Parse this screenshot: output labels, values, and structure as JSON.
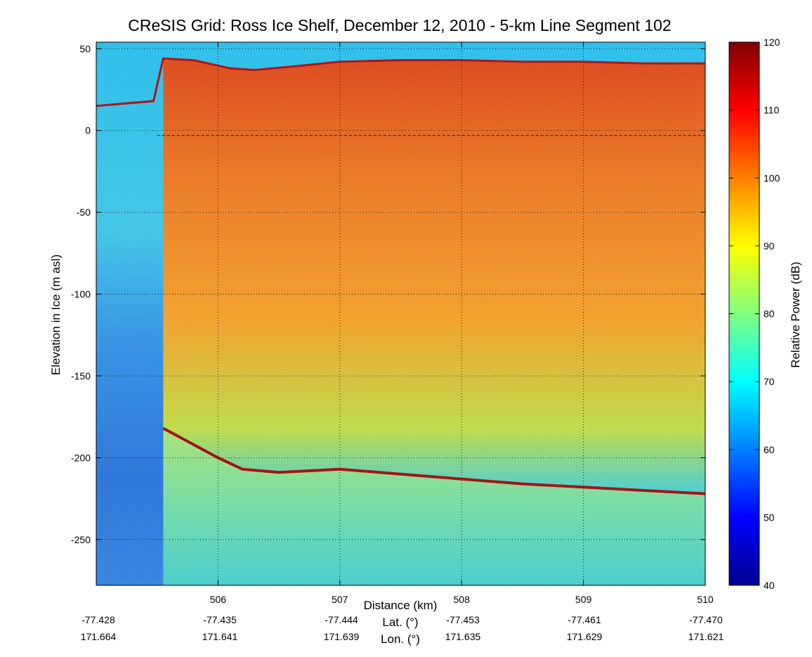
{
  "chart_data": {
    "type": "heatmap",
    "title": "CReSIS Grid: Ross Ice Shelf, December 12, 2010 - 5-km Line Segment 102",
    "xlabel": "Distance (km)",
    "ylabel": "Elevation in Ice (m asl)",
    "xlim": [
      505.0,
      510.0
    ],
    "ylim": [
      -278,
      54
    ],
    "x_ticks": [
      "506",
      "507",
      "508",
      "509",
      "510"
    ],
    "x_tick_values": [
      506,
      507,
      508,
      509,
      510
    ],
    "y_ticks": [
      "50",
      "0",
      "-50",
      "-100",
      "-150",
      "-200",
      "-250"
    ],
    "y_tick_values": [
      50,
      0,
      -50,
      -100,
      -150,
      -200,
      -250
    ],
    "grid": true,
    "colormap": "jet",
    "colorbar": {
      "label": "Relative Power (dB)",
      "range": [
        40,
        120
      ],
      "ticks": [
        "120",
        "110",
        "100",
        "90",
        "80",
        "70",
        "60",
        "50",
        "40"
      ],
      "tick_values": [
        120,
        110,
        100,
        90,
        80,
        70,
        60,
        50,
        40
      ]
    },
    "secondary_axes": {
      "lat_label": "Lat. (°)",
      "lon_label": "Lon. (°)",
      "lat_values": [
        "-77.428",
        "-77.435",
        "-77.444",
        "-77.453",
        "-77.461",
        "-77.470"
      ],
      "lon_values": [
        "171.664",
        "171.641",
        "171.639",
        "171.635",
        "171.629",
        "171.621"
      ]
    },
    "surface_profile": {
      "x": [
        505.0,
        505.47,
        505.55,
        505.8,
        506.1,
        506.3,
        506.6,
        507.0,
        507.5,
        508.0,
        508.5,
        509.0,
        509.5,
        510.0
      ],
      "y": [
        15,
        18,
        44,
        43,
        38,
        37,
        39,
        42,
        43,
        43,
        42,
        42,
        41,
        41
      ]
    },
    "base_profile": {
      "x": [
        505.55,
        505.8,
        506.0,
        506.2,
        506.5,
        507.0,
        507.5,
        508.0,
        508.5,
        509.0,
        509.5,
        510.0
      ],
      "y": [
        -182,
        -192,
        -200,
        -207,
        -209,
        -207,
        -210,
        -213,
        -216,
        -218,
        -220,
        -222
      ]
    },
    "sea_level_line": {
      "y": -3,
      "x_start": 505.5,
      "x_end": 510.0
    }
  }
}
